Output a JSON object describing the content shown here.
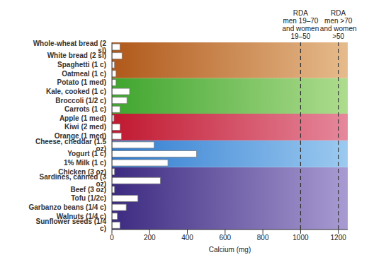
{
  "chart_data": {
    "type": "bar",
    "orientation": "horizontal",
    "categories": [
      "Sunflower seeds (1/4 c)",
      "Walnuts (1/4 c)",
      "Garbanzo beans (1/4 c)",
      "Tofu (1/2c)",
      "Beef (3 oz)",
      "Sardines, canned (3 oz)",
      "Chicken (3 oz)",
      "1% Milk (1 c)",
      "Yogurt (1 c)",
      "Cheese, cheddar (1.5 oz)",
      "Orange (1 med)",
      "Kiwi (2 med)",
      "Apple (1 med)",
      "Carrots (1 c)",
      "Broccoli (1/2 c)",
      "Kale, cooked (1 c)",
      "Potato (1 med)",
      "Oatmeal (1 c)",
      "Spaghetti (1 c)",
      "White bread (2 sl)",
      "Whole-wheat bread (2 sl)"
    ],
    "values": [
      43,
      29,
      76,
      138,
      14,
      257,
      14,
      297,
      449,
      224,
      51,
      43,
      11,
      43,
      80,
      94,
      22,
      22,
      14,
      54,
      43
    ],
    "color": "#ffffff",
    "xlabel": "Calcium (mg)",
    "xlim": [
      0,
      1250
    ],
    "xticks": [
      0,
      200,
      400,
      600,
      800,
      1000,
      1200
    ],
    "annotations": [
      {
        "x": 1000,
        "text": [
          "RDA",
          "men 19–70",
          "and women",
          "19–50"
        ]
      },
      {
        "x": 1200,
        "text": [
          "RDA",
          "men >70",
          "and women",
          ">50"
        ]
      }
    ]
  }
}
